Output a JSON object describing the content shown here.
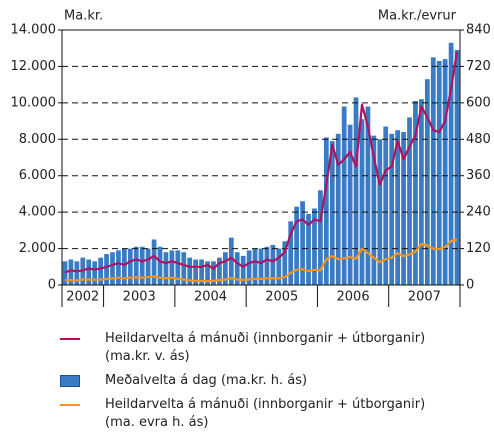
{
  "chart_data": {
    "type": "bar",
    "y_label": "Ma.kr.",
    "y2_label": "Ma.kr./evrur",
    "categories": [
      "2002",
      null,
      null,
      null,
      null,
      null,
      null,
      "2003",
      null,
      null,
      null,
      null,
      null,
      null,
      null,
      null,
      null,
      null,
      null,
      "2004",
      null,
      null,
      null,
      null,
      null,
      null,
      null,
      null,
      null,
      null,
      null,
      "2005",
      null,
      null,
      null,
      null,
      null,
      null,
      null,
      null,
      null,
      null,
      null,
      "2006",
      null,
      null,
      null,
      null,
      null,
      null,
      null,
      null,
      null,
      null,
      null,
      "2007",
      null,
      null,
      null,
      null,
      null,
      null,
      null,
      null,
      null,
      null,
      null
    ],
    "ylim": [
      0,
      14000
    ],
    "yticks": [
      0,
      {
        "value": 2000,
        "label": "2.000"
      },
      {
        "value": 4000,
        "label": "4.000"
      },
      {
        "value": 6000,
        "label": "6.000"
      },
      {
        "value": 8000,
        "label": "8.000"
      },
      {
        "value": 10000,
        "label": "10.000"
      },
      {
        "value": 12000,
        "label": "12.000"
      },
      {
        "value": 14000,
        "label": "14.000"
      }
    ],
    "y2lim": [
      0,
      840
    ],
    "y2ticks": [
      0,
      120,
      240,
      360,
      480,
      600,
      720,
      840
    ],
    "grid": true,
    "series": [
      {
        "name": "Heildarvelta á mánuði (innborganir + útborganir) (ma.kr. v. ás)",
        "type": "line",
        "axis": "y",
        "color": "#b0125f",
        "values": [
          700,
          800,
          750,
          800,
          900,
          850,
          900,
          1000,
          1100,
          1200,
          1100,
          1300,
          1400,
          1300,
          1400,
          1600,
          1300,
          1200,
          1300,
          1200,
          1100,
          1000,
          1000,
          1000,
          1100,
          900,
          1200,
          1300,
          1500,
          1200,
          1000,
          1200,
          1300,
          1200,
          1400,
          1300,
          1500,
          1800,
          2800,
          3500,
          3600,
          3300,
          3600,
          3500,
          5500,
          7700,
          6600,
          6900,
          7300,
          6500,
          9900,
          8700,
          7000,
          5500,
          6300,
          6500,
          7900,
          6900,
          7600,
          8200,
          9800,
          9200,
          8500,
          8400,
          9000,
          10800,
          12800
        ]
      },
      {
        "name": "Meðalvelta á dag (ma.kr. h. ás)",
        "type": "bar",
        "axis": "y2",
        "color": "#3a7cc4",
        "values": [
          78,
          84,
          78,
          90,
          84,
          78,
          90,
          102,
          108,
          114,
          120,
          120,
          126,
          126,
          120,
          150,
          126,
          108,
          114,
          114,
          108,
          90,
          84,
          84,
          78,
          78,
          90,
          108,
          156,
          108,
          96,
          114,
          120,
          120,
          126,
          132,
          120,
          144,
          210,
          258,
          276,
          234,
          252,
          312,
          486,
          474,
          498,
          588,
          528,
          618,
          546,
          588,
          492,
          480,
          522,
          498,
          510,
          504,
          552,
          606,
          612,
          678,
          750,
          738,
          744,
          798,
          774
        ]
      },
      {
        "name": "Heildarvelta á mánuði (innborganir + útborganir) (ma. evra h. ás)",
        "type": "line",
        "axis": "y2",
        "color": "#f7941d",
        "values": [
          15,
          16,
          15,
          18,
          18,
          17,
          18,
          20,
          22,
          24,
          22,
          24,
          25,
          24,
          26,
          28,
          24,
          22,
          24,
          20,
          18,
          15,
          14,
          14,
          13,
          14,
          16,
          18,
          22,
          18,
          16,
          18,
          20,
          20,
          22,
          22,
          22,
          26,
          40,
          50,
          52,
          46,
          50,
          48,
          85,
          95,
          85,
          88,
          92,
          86,
          120,
          105,
          90,
          75,
          85,
          90,
          105,
          95,
          100,
          110,
          135,
          130,
          120,
          118,
          125,
          145,
          150
        ]
      }
    ]
  }
}
